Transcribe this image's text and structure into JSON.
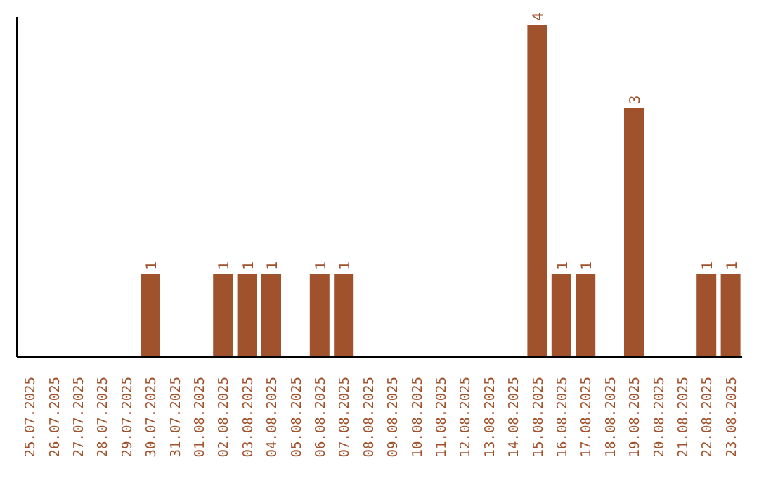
{
  "chart_data": {
    "type": "bar",
    "categories": [
      "25.07.2025",
      "26.07.2025",
      "27.07.2025",
      "28.07.2025",
      "29.07.2025",
      "30.07.2025",
      "31.07.2025",
      "01.08.2025",
      "02.08.2025",
      "03.08.2025",
      "04.08.2025",
      "05.08.2025",
      "06.08.2025",
      "07.08.2025",
      "08.08.2025",
      "09.08.2025",
      "10.08.2025",
      "11.08.2025",
      "12.08.2025",
      "13.08.2025",
      "14.08.2025",
      "15.08.2025",
      "16.08.2025",
      "17.08.2025",
      "18.08.2025",
      "19.08.2025",
      "20.08.2025",
      "21.08.2025",
      "22.08.2025",
      "23.08.2025"
    ],
    "values": [
      0,
      0,
      0,
      0,
      0,
      1,
      0,
      0,
      1,
      1,
      1,
      0,
      1,
      1,
      0,
      0,
      0,
      0,
      0,
      0,
      0,
      4,
      1,
      1,
      0,
      3,
      0,
      0,
      1,
      1
    ],
    "value_labels": [
      null,
      null,
      null,
      null,
      null,
      "1",
      null,
      null,
      "1",
      "1",
      "1",
      null,
      "1",
      "1",
      null,
      null,
      null,
      null,
      null,
      null,
      null,
      "4",
      "1",
      "1",
      null,
      "3",
      null,
      null,
      "1",
      "1"
    ],
    "color": "#a0522d",
    "ylim": [
      0,
      4.1
    ],
    "tick_labels": "x",
    "grid": false,
    "legend": false
  }
}
